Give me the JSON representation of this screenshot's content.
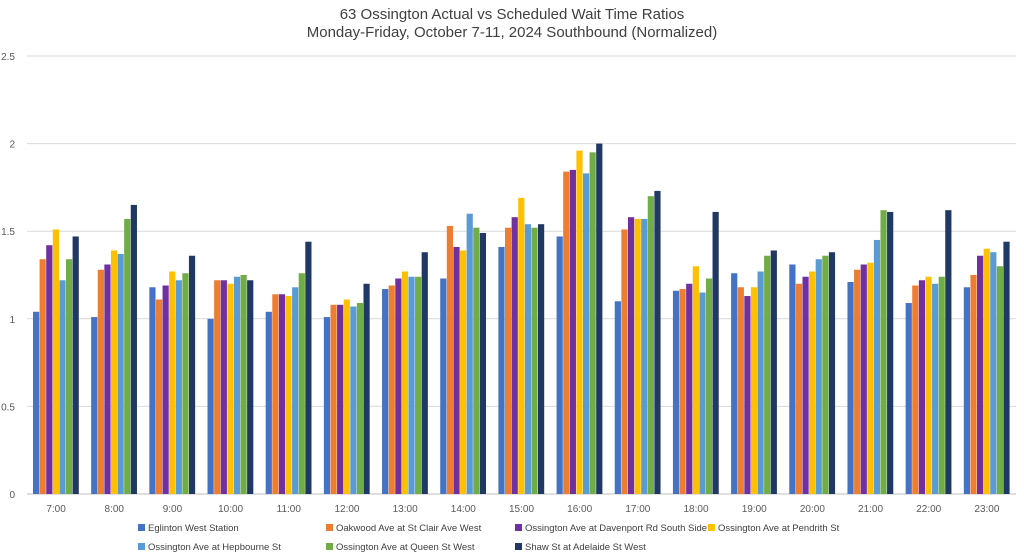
{
  "chart_data": {
    "type": "bar",
    "title": "63 Ossington  Actual vs Scheduled Wait Time Ratios",
    "subtitle": "Monday-Friday, October 7-11, 2024 Southbound (Normalized)",
    "xlabel": "",
    "ylabel": "",
    "ylim": [
      0,
      2.5
    ],
    "yticks": [
      "0",
      "0.5",
      "1",
      "1.5",
      "2",
      "2.5"
    ],
    "grid": true,
    "legend_position": "bottom",
    "categories": [
      "7:00",
      "8:00",
      "9:00",
      "10:00",
      "11:00",
      "12:00",
      "13:00",
      "14:00",
      "15:00",
      "16:00",
      "17:00",
      "18:00",
      "19:00",
      "20:00",
      "21:00",
      "22:00",
      "23:00"
    ],
    "series": [
      {
        "name": "Eglinton West Station",
        "color": "#4472C4",
        "values": [
          1.04,
          1.01,
          1.18,
          1.0,
          1.04,
          1.01,
          1.17,
          1.23,
          1.41,
          1.47,
          1.1,
          1.16,
          1.26,
          1.31,
          1.21,
          1.09,
          1.18
        ]
      },
      {
        "name": "Oakwood Ave at St Clair Ave West",
        "color": "#ED7D31",
        "values": [
          1.34,
          1.28,
          1.11,
          1.22,
          1.14,
          1.08,
          1.19,
          1.53,
          1.52,
          1.84,
          1.51,
          1.17,
          1.18,
          1.2,
          1.28,
          1.19,
          1.25
        ]
      },
      {
        "name": "Ossington Ave at Davenport Rd South Side",
        "color": "#7030A0",
        "values": [
          1.42,
          1.31,
          1.19,
          1.22,
          1.14,
          1.08,
          1.23,
          1.41,
          1.58,
          1.85,
          1.58,
          1.2,
          1.13,
          1.24,
          1.31,
          1.22,
          1.36
        ]
      },
      {
        "name": "Ossington Ave at Pendrith St",
        "color": "#FFC000",
        "values": [
          1.51,
          1.39,
          1.27,
          1.2,
          1.13,
          1.11,
          1.27,
          1.39,
          1.69,
          1.96,
          1.57,
          1.3,
          1.18,
          1.27,
          1.32,
          1.24,
          1.4
        ]
      },
      {
        "name": "Ossington Ave at Hepbourne St",
        "color": "#5B9BD5",
        "values": [
          1.22,
          1.37,
          1.22,
          1.24,
          1.18,
          1.07,
          1.24,
          1.6,
          1.54,
          1.83,
          1.57,
          1.15,
          1.27,
          1.34,
          1.45,
          1.2,
          1.38
        ]
      },
      {
        "name": "Ossington Ave at Queen St West",
        "color": "#70AD47",
        "values": [
          1.34,
          1.57,
          1.26,
          1.25,
          1.26,
          1.09,
          1.24,
          1.52,
          1.52,
          1.95,
          1.7,
          1.23,
          1.36,
          1.36,
          1.62,
          1.24,
          1.3
        ]
      },
      {
        "name": "Shaw St at Adelaide St West",
        "color": "#203864",
        "values": [
          1.47,
          1.65,
          1.36,
          1.22,
          1.44,
          1.2,
          1.38,
          1.49,
          1.54,
          2.0,
          1.73,
          1.61,
          1.39,
          1.38,
          1.61,
          1.62,
          1.44
        ]
      }
    ]
  }
}
